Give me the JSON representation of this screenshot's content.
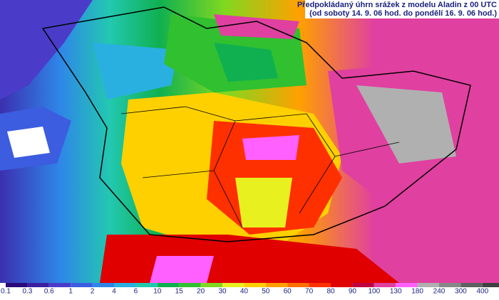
{
  "header": {
    "title": "Předpokládaný úhrn srážek z modelu Aladin z 00 UTC",
    "subtitle": "(od soboty 14. 9. 06 hod. do pondělí 16. 9. 06 hod.)"
  },
  "legend": {
    "items": [
      {
        "label": 0.1,
        "color": "#2a0a78"
      },
      {
        "label": 0.3,
        "color": "#3b1fa0"
      },
      {
        "label": 0.6,
        "color": "#4a3cc8"
      },
      {
        "label": 1,
        "color": "#3c5de0"
      },
      {
        "label": 2,
        "color": "#2f86e8"
      },
      {
        "label": 4,
        "color": "#2ab0e0"
      },
      {
        "label": 6,
        "color": "#22c8b0"
      },
      {
        "label": 10,
        "color": "#10b050"
      },
      {
        "label": 15,
        "color": "#30c030"
      },
      {
        "label": 20,
        "color": "#80d820"
      },
      {
        "label": 30,
        "color": "#e8f020"
      },
      {
        "label": 40,
        "color": "#ffd000"
      },
      {
        "label": 50,
        "color": "#ffa000"
      },
      {
        "label": 60,
        "color": "#ff7000"
      },
      {
        "label": 70,
        "color": "#ff3000"
      },
      {
        "label": 80,
        "color": "#e00000"
      },
      {
        "label": 90,
        "color": "#c00040"
      },
      {
        "label": 100,
        "color": "#e040a0"
      },
      {
        "label": 130,
        "color": "#ff60ff"
      },
      {
        "label": 180,
        "color": "#b0b0b0"
      },
      {
        "label": 240,
        "color": "#888888"
      },
      {
        "label": 300,
        "color": "#606060"
      },
      {
        "label": 400,
        "color": "#404040"
      }
    ]
  }
}
